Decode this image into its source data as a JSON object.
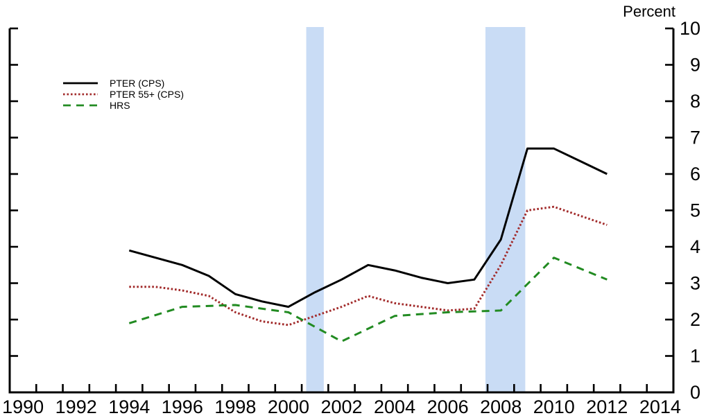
{
  "colors": {
    "background": "#ffffff",
    "axis": "#000000",
    "recession_band": "#c9dcf5"
  },
  "chart_data": {
    "type": "line",
    "title": "",
    "ylabel": "Percent",
    "xlabel": "",
    "grid": false,
    "legend_position": "top-left-inside",
    "y_axis": {
      "min": 0,
      "max": 10,
      "tick_step": 1,
      "labels": [
        "0",
        "1",
        "2",
        "3",
        "4",
        "5",
        "6",
        "7",
        "8",
        "9",
        "10"
      ],
      "label_side": "right"
    },
    "x_axis": {
      "min": 1990,
      "max": 2015,
      "tick_step": 1,
      "label_step": 2,
      "labels": [
        "1990",
        "1992",
        "1994",
        "1996",
        "1998",
        "2000",
        "2002",
        "2004",
        "2006",
        "2008",
        "2010",
        "2012",
        "2014"
      ]
    },
    "recession_bands": [
      {
        "start": 2001.17,
        "end": 2001.83
      },
      {
        "start": 2007.92,
        "end": 2009.42
      }
    ],
    "series": [
      {
        "name": "PTER (CPS)",
        "color": "#000000",
        "line_style": "solid",
        "years": [
          1994,
          1995,
          1996,
          1997,
          1998,
          1999,
          2000,
          2001,
          2002,
          2003,
          2004,
          2005,
          2006,
          2007,
          2008,
          2009,
          2010,
          2011,
          2012
        ],
        "values": [
          3.9,
          3.7,
          3.5,
          3.2,
          2.7,
          2.5,
          2.35,
          2.75,
          3.1,
          3.5,
          3.35,
          3.15,
          3.0,
          3.1,
          4.2,
          6.7,
          6.7,
          6.35,
          6.0
        ]
      },
      {
        "name": "PTER 55+ (CPS)",
        "color": "#a22b2b",
        "line_style": "dotted",
        "years": [
          1994,
          1995,
          1996,
          1997,
          1998,
          1999,
          2000,
          2001,
          2002,
          2003,
          2004,
          2005,
          2006,
          2007,
          2008,
          2009,
          2010,
          2011,
          2012
        ],
        "values": [
          2.9,
          2.9,
          2.8,
          2.65,
          2.2,
          1.95,
          1.85,
          2.1,
          2.35,
          2.65,
          2.45,
          2.35,
          2.25,
          2.3,
          3.5,
          5.0,
          5.1,
          4.85,
          4.6
        ]
      },
      {
        "name": "HRS",
        "color": "#228b22",
        "line_style": "dashed",
        "years": [
          1994,
          1996,
          1998,
          2000,
          2002,
          2004,
          2006,
          2008,
          2010,
          2012
        ],
        "values": [
          1.9,
          2.35,
          2.4,
          2.2,
          1.4,
          2.1,
          2.2,
          2.25,
          3.7,
          3.1
        ]
      }
    ]
  }
}
